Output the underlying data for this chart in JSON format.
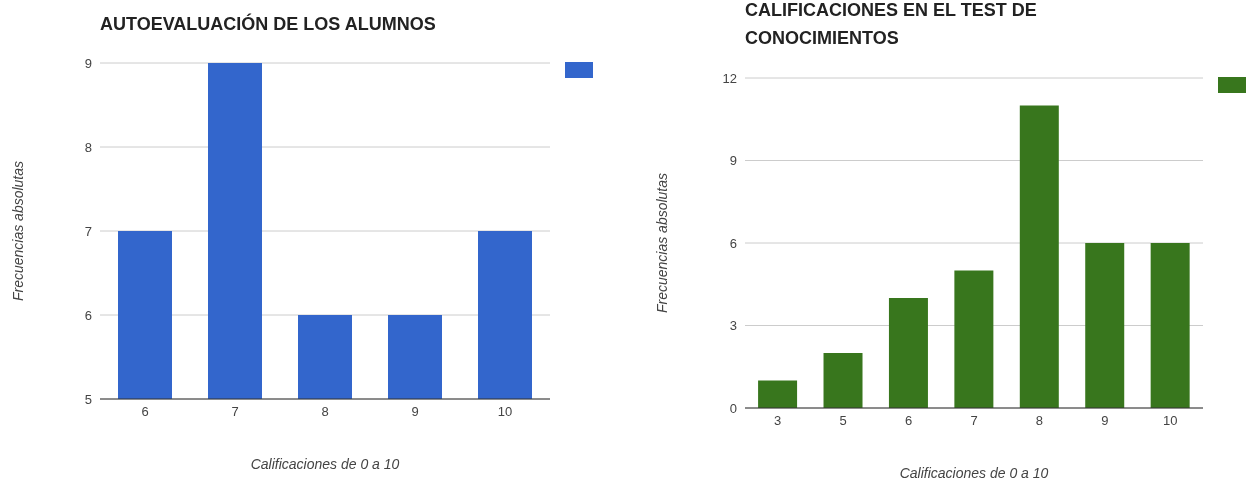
{
  "chart_data": [
    {
      "type": "bar",
      "title": "AUTOEVALUACIÓN DE LOS ALUMNOS",
      "xlabel": "Calificaciones de 0 a 10",
      "ylabel": "Frecuencias absolutas",
      "categories": [
        "6",
        "7",
        "8",
        "9",
        "10"
      ],
      "values": [
        7,
        9,
        6,
        6,
        7
      ],
      "color": "#3366cc",
      "ylim": [
        5,
        9
      ],
      "yticks": [
        5,
        6,
        7,
        8,
        9
      ],
      "grid": "y"
    },
    {
      "type": "bar",
      "title": "CALIFICACIONES EN EL TEST DE CONOCIMIENTOS",
      "xlabel": "Calificaciones de 0 a 10",
      "ylabel": "Frecuencias absolutas",
      "categories": [
        "3",
        "5",
        "6",
        "7",
        "8",
        "9",
        "10"
      ],
      "values": [
        1,
        2,
        4,
        5,
        11,
        6,
        6
      ],
      "color": "#38761d",
      "ylim": [
        0,
        12
      ],
      "yticks": [
        0,
        3,
        6,
        9,
        12
      ],
      "grid": "y"
    }
  ]
}
